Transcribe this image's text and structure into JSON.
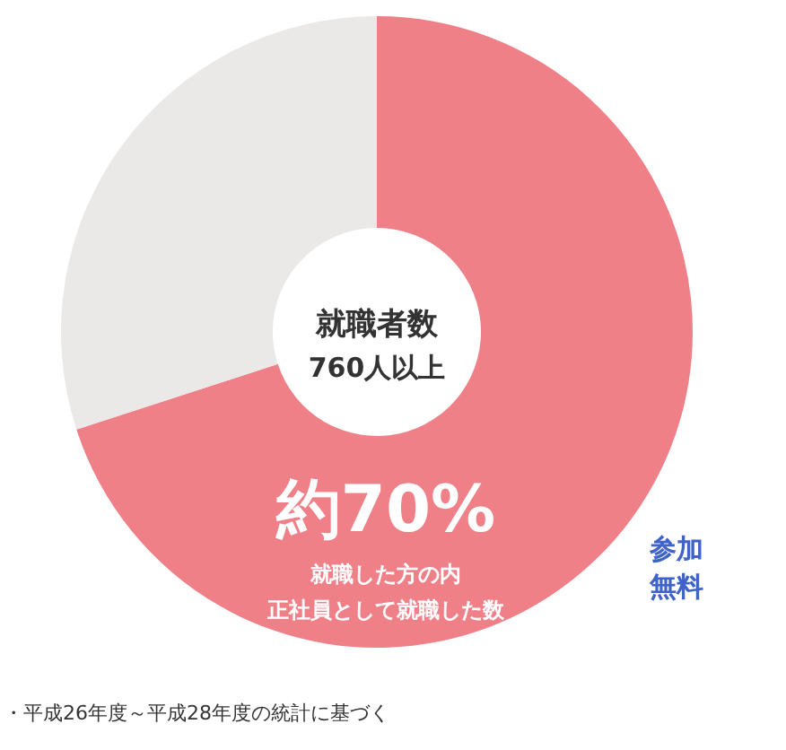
{
  "chart_data": {
    "type": "donut",
    "categories": [
      null,
      null
    ],
    "values": [
      70,
      30
    ],
    "colors": [
      "#f08088",
      "#ebe9e7"
    ],
    "value_labels": [
      "約70%",
      null
    ],
    "annotations": [
      "就職者数",
      "760人以上",
      "就職した方の内",
      "正社員として就職した数",
      "参加",
      "無料",
      "・平成26年度～平成28年度の統計に基づく"
    ]
  }
}
